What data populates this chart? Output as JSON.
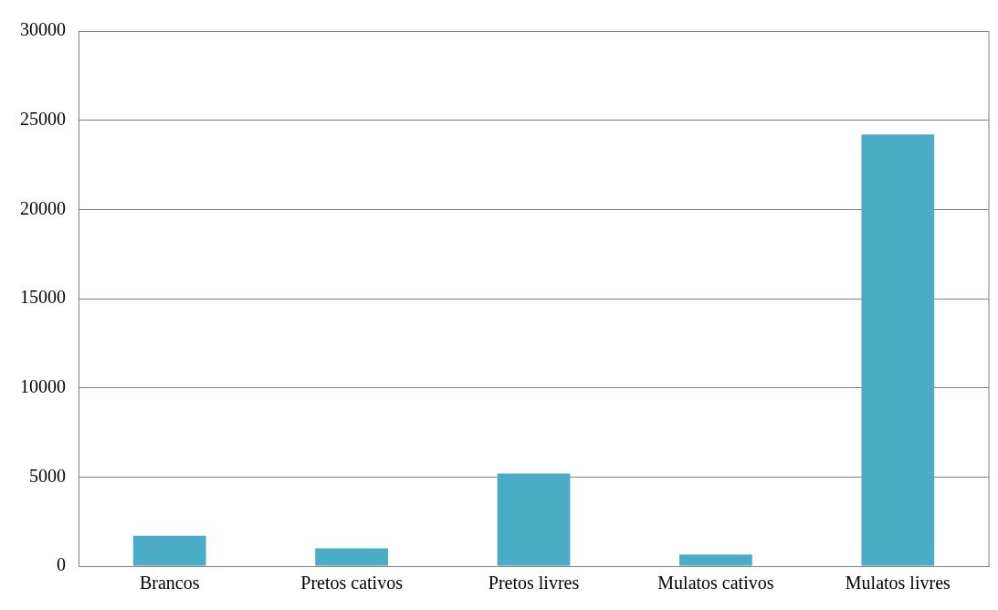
{
  "chart_data": {
    "type": "bar",
    "categories": [
      "Brancos",
      "Pretos cativos",
      "Pretos livres",
      "Mulatos cativos",
      "Mulatos livres"
    ],
    "values": [
      1700,
      1000,
      5200,
      650,
      24200
    ],
    "color": "#4bacc6",
    "ylim": [
      0,
      30000
    ],
    "yticks": [
      0,
      5000,
      10000,
      15000,
      20000,
      25000,
      30000
    ],
    "grid": "y",
    "legend": false
  }
}
